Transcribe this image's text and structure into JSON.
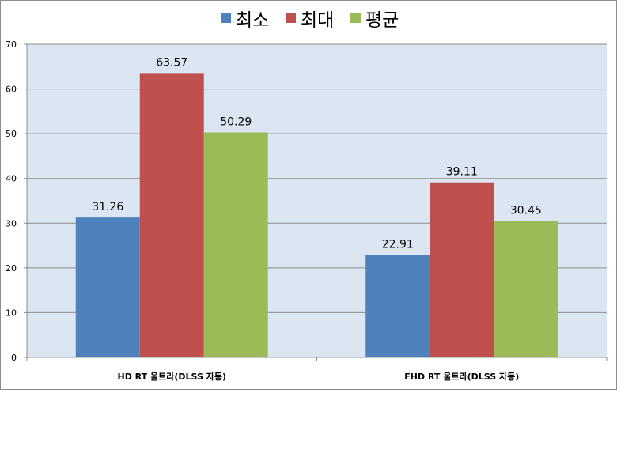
{
  "chart_data": {
    "type": "bar",
    "categories": [
      "HD RT 울트라(DLSS 자동)",
      "FHD RT 울트라(DLSS 자동)"
    ],
    "series": [
      {
        "name": "최소",
        "values": [
          31.26,
          22.91
        ],
        "color": "#4f81bd"
      },
      {
        "name": "최대",
        "values": [
          63.57,
          39.11
        ],
        "color": "#c0504d"
      },
      {
        "name": "평균",
        "values": [
          50.29,
          30.45
        ],
        "color": "#9bbb59"
      }
    ],
    "value_labels": [
      [
        "31.26",
        "22.91"
      ],
      [
        "63.57",
        "39.11"
      ],
      [
        "50.29",
        "30.45"
      ]
    ],
    "title": "",
    "xlabel": "",
    "ylabel": "",
    "ylim": [
      0,
      70
    ],
    "yticks": [
      0,
      10,
      20,
      30,
      40,
      50,
      60,
      70
    ],
    "ytick_labels": [
      "0",
      "10",
      "20",
      "30",
      "40",
      "50",
      "60",
      "70"
    ],
    "grid": true,
    "legend_position": "top-center",
    "plot_background": "#dce6f2",
    "gridline_color": "#8c8c8c"
  }
}
